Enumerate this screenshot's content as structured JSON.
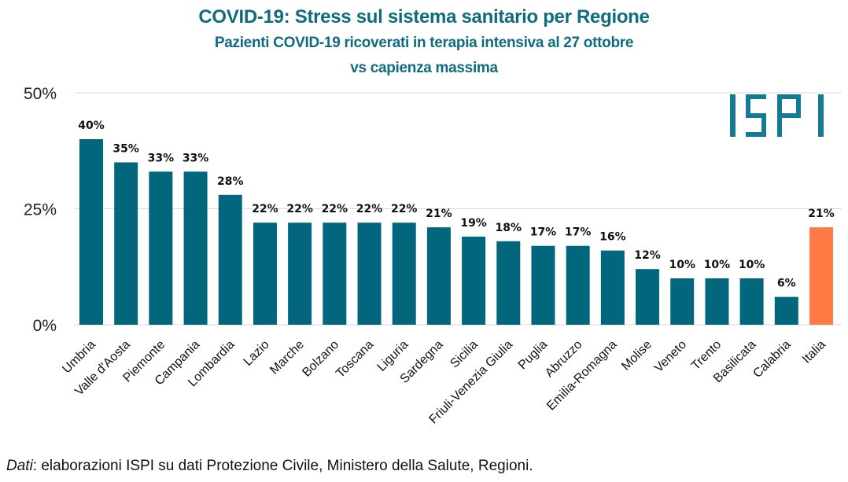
{
  "header": {
    "title": "COVID-19: Stress sul sistema sanitario per Regione",
    "subtitle_line1": "Pazienti COVID-19 ricoverati in terapia intensiva al 27 ottobre",
    "subtitle_line2": "vs capienza massima"
  },
  "logo": {
    "text": "ISPI",
    "color": "#157a94"
  },
  "source": {
    "prefix": "Dati",
    "text": ": elaborazioni ISPI su dati Protezione Civile, Ministero della Salute, Regioni."
  },
  "colors": {
    "region_bar": "#02667c",
    "national_bar": "#ff7a45",
    "grid": "#d9d9d9"
  },
  "chart_data": {
    "type": "bar",
    "title": "COVID-19: Stress sul sistema sanitario per Regione",
    "subtitle": "Pazienti COVID-19 ricoverati in terapia intensiva al 27 ottobre vs capienza massima",
    "xlabel": "",
    "ylabel": "",
    "ylim": [
      0,
      50
    ],
    "yticks": [
      0,
      25,
      50
    ],
    "ytick_labels": [
      "0%",
      "25%",
      "50%"
    ],
    "grid": true,
    "legend": "none",
    "categories": [
      "Umbria",
      "Valle d'Aosta",
      "Piemonte",
      "Campania",
      "Lombardia",
      "Lazio",
      "Marche",
      "Bolzano",
      "Toscana",
      "Liguria",
      "Sardegna",
      "Sicilia",
      "Friuli-Venezia Giulia",
      "Puglia",
      "Abruzzo",
      "Emilia-Romagna",
      "Molise",
      "Veneto",
      "Trento",
      "Basilicata",
      "Calabria",
      "Italia"
    ],
    "values": [
      40,
      35,
      33,
      33,
      28,
      22,
      22,
      22,
      22,
      22,
      21,
      19,
      18,
      17,
      17,
      16,
      12,
      10,
      10,
      10,
      6,
      21
    ],
    "data_labels": [
      "40%",
      "35%",
      "33%",
      "33%",
      "28%",
      "22%",
      "22%",
      "22%",
      "22%",
      "22%",
      "21%",
      "19%",
      "18%",
      "17%",
      "17%",
      "16%",
      "12%",
      "10%",
      "10%",
      "10%",
      "6%",
      "21%"
    ],
    "highlight": {
      "category": "Italia",
      "color": "#ff7a45"
    }
  }
}
